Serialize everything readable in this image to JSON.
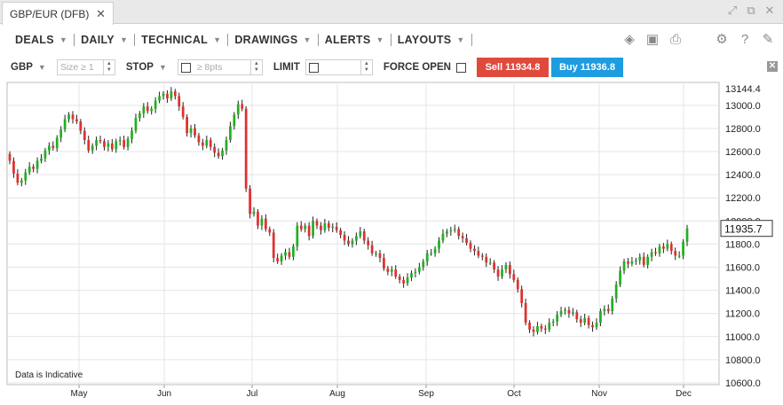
{
  "tab": {
    "title": "GBP/EUR (DFB)",
    "close": "✕"
  },
  "menu": {
    "items": [
      {
        "label": "DEALS"
      },
      {
        "label": "DAILY"
      },
      {
        "label": "TECHNICAL"
      },
      {
        "label": "DRAWINGS"
      },
      {
        "label": "ALERTS"
      },
      {
        "label": "LAYOUTS"
      }
    ]
  },
  "order": {
    "currency": "GBP",
    "size_placeholder": "Size ≥ 1",
    "stop_label": "STOP",
    "points_placeholder": "≥ 8pts",
    "limit_label": "LIMIT",
    "force_open_label": "FORCE OPEN",
    "sell_label": "Sell 11934.8",
    "buy_label": "Buy 11936.8"
  },
  "chart_data": {
    "type": "candlestick",
    "title": "",
    "note": "Data is Indicative",
    "current_price": "11935.7",
    "ylim": [
      10600,
      13144.4
    ],
    "y_ticks": [
      "13144.4",
      "13000.0",
      "12800.0",
      "12600.0",
      "12400.0",
      "12200.0",
      "12000.0",
      "11800.0",
      "11600.0",
      "11400.0",
      "11200.0",
      "11000.0",
      "10800.0",
      "10600.0"
    ],
    "x_ticks": [
      "May",
      "Jun",
      "Jul",
      "Aug",
      "Sep",
      "Oct",
      "Nov",
      "Dec"
    ],
    "colors": {
      "up": "#22b022",
      "down": "#e03030",
      "grid": "#e4e4e4"
    },
    "closes": [
      12520,
      12410,
      12330,
      12350,
      12420,
      12470,
      12450,
      12520,
      12540,
      12610,
      12650,
      12630,
      12720,
      12790,
      12880,
      12920,
      12880,
      12860,
      12780,
      12700,
      12610,
      12650,
      12700,
      12690,
      12640,
      12670,
      12620,
      12690,
      12700,
      12640,
      12710,
      12780,
      12890,
      12930,
      12990,
      12950,
      12970,
      13040,
      13080,
      13100,
      13060,
      13120,
      13080,
      12990,
      12900,
      12760,
      12800,
      12740,
      12680,
      12650,
      12700,
      12640,
      12590,
      12560,
      12610,
      12700,
      12820,
      12920,
      13010,
      12970,
      12280,
      12060,
      12080,
      11960,
      12020,
      11930,
      11900,
      11680,
      11650,
      11700,
      11730,
      11690,
      11780,
      11960,
      11930,
      11960,
      11870,
      12000,
      11960,
      11920,
      11980,
      11940,
      11950,
      11920,
      11880,
      11830,
      11800,
      11830,
      11870,
      11910,
      11830,
      11790,
      11720,
      11720,
      11680,
      11590,
      11560,
      11580,
      11520,
      11490,
      11460,
      11510,
      11550,
      11560,
      11600,
      11650,
      11720,
      11720,
      11760,
      11830,
      11890,
      11910,
      11920,
      11930,
      11870,
      11850,
      11810,
      11760,
      11740,
      11700,
      11690,
      11640,
      11640,
      11580,
      11520,
      11580,
      11620,
      11540,
      11490,
      11410,
      11290,
      11120,
      11060,
      11040,
      11090,
      11070,
      11060,
      11120,
      11130,
      11190,
      11220,
      11230,
      11200,
      11210,
      11150,
      11120,
      11160,
      11100,
      11080,
      11120,
      11220,
      11240,
      11220,
      11330,
      11450,
      11570,
      11650,
      11630,
      11650,
      11660,
      11690,
      11620,
      11690,
      11730,
      11720,
      11780,
      11760,
      11800,
      11740,
      11700,
      11700,
      11820,
      11936
    ]
  }
}
